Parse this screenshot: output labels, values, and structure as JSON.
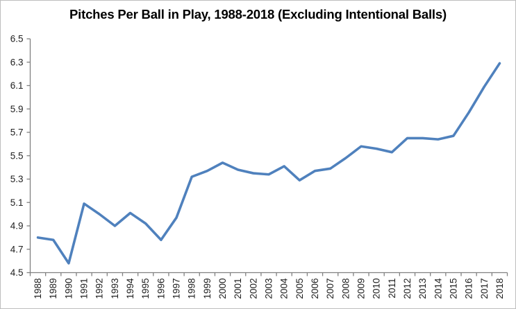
{
  "chart_data": {
    "type": "line",
    "title": "Pitches Per Ball in Play, 1988-2018 (Excluding Intentional Balls)",
    "categories": [
      "1988",
      "1989",
      "1990",
      "1991",
      "1992",
      "1993",
      "1994",
      "1995",
      "1996",
      "1997",
      "1998",
      "1999",
      "2000",
      "2001",
      "2002",
      "2003",
      "2004",
      "2005",
      "2006",
      "2007",
      "2008",
      "2009",
      "2010",
      "2011",
      "2012",
      "2013",
      "2014",
      "2015",
      "2016",
      "2017",
      "2018"
    ],
    "values": [
      4.8,
      4.78,
      4.58,
      5.09,
      5.0,
      4.9,
      5.01,
      4.92,
      4.78,
      4.97,
      5.32,
      5.37,
      5.44,
      5.38,
      5.35,
      5.34,
      5.41,
      5.29,
      5.37,
      5.39,
      5.48,
      5.58,
      5.56,
      5.53,
      5.65,
      5.65,
      5.64,
      5.67,
      5.87,
      6.09,
      6.29
    ],
    "series_name": "Pitches per ball in play",
    "xlabel": "",
    "ylabel": "",
    "ylim": [
      4.5,
      6.5
    ],
    "ytick_step": 0.2,
    "ytick_labels": [
      "4.5",
      "4.7",
      "4.9",
      "5.1",
      "5.3",
      "5.5",
      "5.7",
      "5.9",
      "6.1",
      "6.3",
      "6.5"
    ],
    "grid": false,
    "legend": "none",
    "colors": {
      "line": "#4F81BD",
      "axis": "#808080",
      "tick_label": "#1f1f1f",
      "frame_border": "#bdbdbd",
      "background": "#ffffff"
    }
  }
}
